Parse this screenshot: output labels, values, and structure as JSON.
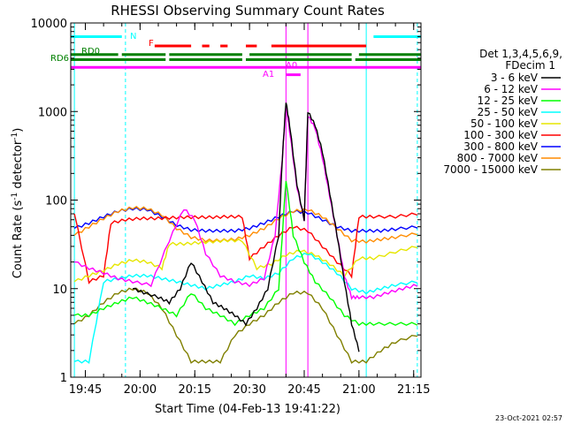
{
  "chart_data": {
    "type": "line",
    "title": "RHESSI Observing Summary Count Rates",
    "xlabel": "Start Time (04-Feb-13 19:41:22)",
    "ylabel_main": "Count Rate (s",
    "ylabel_sup1": "-1",
    "ylabel_mid": " detector",
    "ylabel_sup2": "-1",
    "ylabel_end": ")",
    "y_log": true,
    "ylim": [
      1,
      10000
    ],
    "xlim_min": [
      1181,
      1277
    ],
    "y_ticks": [
      {
        "v": 1,
        "label": "1"
      },
      {
        "v": 10,
        "label": "10"
      },
      {
        "v": 100,
        "label": "100"
      },
      {
        "v": 1000,
        "label": "1000"
      },
      {
        "v": 10000,
        "label": "10000"
      }
    ],
    "x_ticks": [
      {
        "m": 1185,
        "label": "19:45"
      },
      {
        "m": 1200,
        "label": "20:00"
      },
      {
        "m": 1215,
        "label": "20:15"
      },
      {
        "m": 1230,
        "label": "20:30"
      },
      {
        "m": 1245,
        "label": "20:45"
      },
      {
        "m": 1260,
        "label": "21:00"
      },
      {
        "m": 1275,
        "label": "21:15"
      }
    ],
    "legend": {
      "header1": "Det 1,3,4,5,6,9,",
      "header2": "FDecim 1",
      "placement": "right",
      "entries": [
        {
          "label": "3 - 6 keV",
          "color": "#000000"
        },
        {
          "label": "6 - 12 keV",
          "color": "#ff00ff"
        },
        {
          "label": "12 - 25 keV",
          "color": "#00ff00"
        },
        {
          "label": "25 - 50 keV",
          "color": "#00ffff"
        },
        {
          "label": "50 - 100 keV",
          "color": "#e6e600"
        },
        {
          "label": "100 - 300 keV",
          "color": "#ff0000"
        },
        {
          "label": "300 - 800 keV",
          "color": "#0000ff"
        },
        {
          "label": "800 - 7000 keV",
          "color": "#ff8c00"
        },
        {
          "label": "7000 - 15000 keV",
          "color": "#808000"
        }
      ]
    },
    "flag_labels": {
      "N": "N",
      "F": "F",
      "RD0": "RD0",
      "RD6": "RD6",
      "A1": "A1",
      "A0": "A0"
    },
    "timestamp": "23-Oct-2021 02:57",
    "series": [
      {
        "name": "3 - 6 keV",
        "color": "#000000",
        "x": [
          1198,
          1201,
          1205,
          1208,
          1211,
          1214,
          1217,
          1220,
          1223,
          1226,
          1229,
          1232,
          1235,
          1238,
          1239,
          1240,
          1241,
          1243,
          1245,
          1246,
          1248,
          1250,
          1252,
          1254,
          1256,
          1258,
          1260
        ],
        "y": [
          10,
          9,
          8,
          7,
          10,
          20,
          12,
          7,
          6,
          5,
          4,
          6,
          10,
          40,
          300,
          1300,
          700,
          150,
          60,
          1000,
          700,
          350,
          120,
          40,
          12,
          4,
          2
        ]
      },
      {
        "name": "6 - 12 keV",
        "color": "#ff00ff",
        "x": [
          1182,
          1186,
          1190,
          1194,
          1198,
          1203,
          1208,
          1212,
          1215,
          1218,
          1222,
          1226,
          1230,
          1234,
          1237,
          1239,
          1240,
          1241,
          1243,
          1245,
          1246,
          1248,
          1250,
          1252,
          1254,
          1256,
          1258,
          1260,
          1264,
          1268,
          1272,
          1276
        ],
        "y": [
          20,
          17,
          15,
          13,
          12,
          11,
          35,
          80,
          60,
          25,
          14,
          12,
          11,
          13,
          40,
          300,
          1200,
          600,
          140,
          60,
          900,
          650,
          300,
          110,
          40,
          14,
          8,
          8,
          8,
          9,
          10,
          11
        ]
      },
      {
        "name": "12 - 25 keV",
        "color": "#00ff00",
        "x": [
          1182,
          1186,
          1190,
          1194,
          1198,
          1202,
          1206,
          1210,
          1214,
          1218,
          1222,
          1226,
          1230,
          1234,
          1238,
          1240,
          1242,
          1245,
          1248,
          1252,
          1256,
          1260,
          1264,
          1270,
          1276
        ],
        "y": [
          5,
          5,
          6,
          7,
          8,
          7,
          6,
          5,
          9,
          6,
          5,
          4,
          5,
          6,
          10,
          170,
          40,
          20,
          12,
          8,
          5,
          4,
          4,
          4,
          4
        ]
      },
      {
        "name": "25 - 50 keV",
        "color": "#00ffff",
        "x": [
          1182,
          1186,
          1190,
          1194,
          1198,
          1202,
          1206,
          1210,
          1214,
          1218,
          1222,
          1226,
          1230,
          1234,
          1238,
          1242,
          1246,
          1250,
          1254,
          1258,
          1262,
          1266,
          1270,
          1276
        ],
        "y": [
          1.5,
          1.5,
          12,
          13,
          14,
          14,
          13,
          12,
          11,
          10,
          11,
          12,
          14,
          13,
          15,
          22,
          25,
          20,
          15,
          10,
          9,
          10,
          11,
          12
        ]
      },
      {
        "name": "50 - 100 keV",
        "color": "#e6e600",
        "x": [
          1182,
          1186,
          1190,
          1194,
          1198,
          1202,
          1206,
          1208,
          1212,
          1216,
          1220,
          1224,
          1228,
          1232,
          1236,
          1240,
          1244,
          1248,
          1252,
          1256,
          1260,
          1264,
          1270,
          1276
        ],
        "y": [
          12,
          14,
          16,
          19,
          21,
          20,
          17,
          32,
          32,
          33,
          34,
          35,
          35,
          17,
          19,
          24,
          27,
          24,
          19,
          14,
          22,
          22,
          26,
          30
        ]
      },
      {
        "name": "100 - 300 keV",
        "color": "#ff0000",
        "x": [
          1182,
          1186,
          1190,
          1192,
          1196,
          1200,
          1204,
          1208,
          1212,
          1216,
          1220,
          1224,
          1228,
          1230,
          1234,
          1238,
          1242,
          1246,
          1250,
          1254,
          1258,
          1260,
          1264,
          1270,
          1276
        ],
        "y": [
          70,
          12,
          14,
          55,
          60,
          62,
          62,
          63,
          64,
          64,
          64,
          65,
          65,
          22,
          30,
          40,
          50,
          45,
          30,
          20,
          14,
          65,
          65,
          65,
          70
        ]
      },
      {
        "name": "300 - 800 keV",
        "color": "#0000ff",
        "x": [
          1182,
          1186,
          1190,
          1194,
          1198,
          1202,
          1206,
          1210,
          1214,
          1218,
          1222,
          1226,
          1230,
          1234,
          1238,
          1242,
          1246,
          1250,
          1254,
          1258,
          1262,
          1266,
          1270,
          1276
        ],
        "y": [
          48,
          55,
          65,
          75,
          80,
          78,
          65,
          52,
          46,
          45,
          45,
          45,
          48,
          55,
          65,
          75,
          72,
          60,
          50,
          45,
          45,
          45,
          47,
          50
        ]
      },
      {
        "name": "800 - 7000 keV",
        "color": "#ff8c00",
        "x": [
          1182,
          1186,
          1190,
          1194,
          1198,
          1202,
          1206,
          1210,
          1214,
          1218,
          1222,
          1226,
          1230,
          1234,
          1238,
          1242,
          1246,
          1250,
          1254,
          1258,
          1262,
          1266,
          1270,
          1276
        ],
        "y": [
          40,
          50,
          62,
          75,
          82,
          80,
          68,
          48,
          38,
          35,
          35,
          36,
          40,
          48,
          62,
          75,
          78,
          65,
          48,
          35,
          34,
          36,
          38,
          42
        ]
      },
      {
        "name": "7000 - 15000 keV",
        "color": "#808000",
        "x": [
          1182,
          1186,
          1190,
          1194,
          1198,
          1202,
          1206,
          1210,
          1214,
          1218,
          1222,
          1226,
          1230,
          1234,
          1238,
          1242,
          1246,
          1250,
          1254,
          1258,
          1262,
          1266,
          1270,
          1276
        ],
        "y": [
          4,
          5,
          7,
          9,
          10,
          9,
          6,
          3,
          1.5,
          1.5,
          1.5,
          3,
          4,
          5,
          7,
          9,
          9,
          6,
          3,
          1.5,
          1.5,
          2,
          2.5,
          3
        ]
      }
    ],
    "flags": {
      "n_segments": [
        [
          1181,
          1195
        ],
        [
          1264,
          1277
        ]
      ],
      "f_segments": [
        [
          1204,
          1214
        ],
        [
          1217,
          1219
        ],
        [
          1222,
          1224
        ],
        [
          1229,
          1232
        ],
        [
          1236,
          1262
        ]
      ],
      "rd0_segments": [
        [
          1181,
          1194
        ],
        [
          1195,
          1207
        ],
        [
          1208,
          1228
        ],
        [
          1230,
          1258
        ],
        [
          1260,
          1277
        ]
      ],
      "rd6_segments": [
        [
          1181,
          1207
        ],
        [
          1208,
          1228
        ],
        [
          1229,
          1258
        ],
        [
          1259,
          1277
        ]
      ],
      "a1_segment": [
        1181,
        1277
      ],
      "a0_segment": [
        1240,
        1244
      ]
    },
    "vlines_solid": [
      [
        1182,
        "#00ffff"
      ],
      [
        1262,
        "#00ffff"
      ],
      [
        1240,
        "#ff00ff"
      ],
      [
        1246,
        "#ff00ff"
      ]
    ],
    "vlines_dashed": [
      [
        1196,
        "#00ffff"
      ],
      [
        1276,
        "#00ffff"
      ]
    ]
  }
}
